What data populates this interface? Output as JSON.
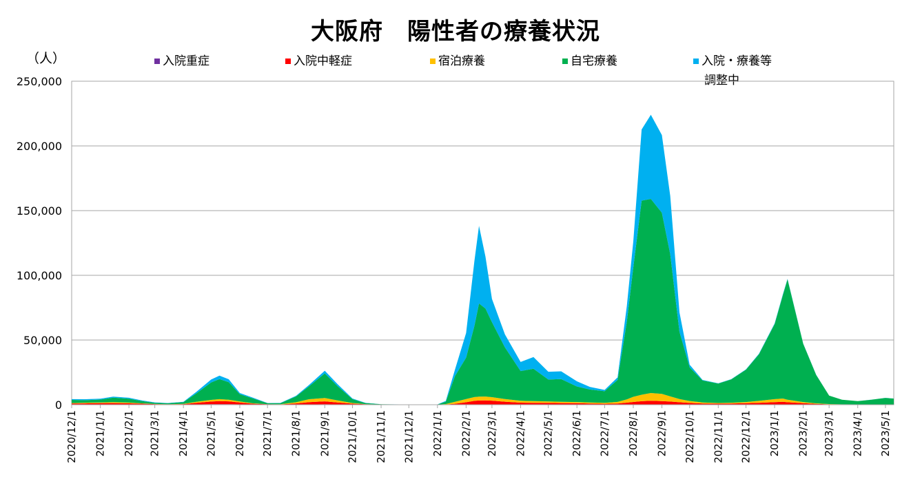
{
  "chart_data": {
    "type": "area",
    "stacked": true,
    "title": "大阪府　陽性者の療養状況",
    "y_unit": "（人）",
    "ylim": [
      0,
      250000
    ],
    "y_ticks": [
      0,
      50000,
      100000,
      150000,
      200000,
      250000
    ],
    "y_tick_labels": [
      "0",
      "50,000",
      "100,000",
      "150,000",
      "200,000",
      "250,000"
    ],
    "x_range": [
      "2020-12-01",
      "2023-05-10"
    ],
    "x_tick_labels": [
      "2020/12/1",
      "2021/1/1",
      "2021/2/1",
      "2021/3/1",
      "2021/4/1",
      "2021/5/1",
      "2021/6/1",
      "2021/7/1",
      "2021/8/1",
      "2021/9/1",
      "2021/10/1",
      "2021/11/1",
      "2021/12/1",
      "2022/1/1",
      "2022/2/1",
      "2022/3/1",
      "2022/4/1",
      "2022/5/1",
      "2022/6/1",
      "2022/7/1",
      "2022/8/1",
      "2022/9/1",
      "2022/10/1",
      "2022/11/1",
      "2022/12/1",
      "2023/1/1",
      "2023/2/1",
      "2023/3/1",
      "2023/4/1",
      "2023/5/1"
    ],
    "grid": true,
    "legend_position": "top",
    "legend_note": "調整中",
    "dates": [
      "2020-12-01",
      "2020-12-15",
      "2021-01-01",
      "2021-01-15",
      "2021-02-01",
      "2021-02-15",
      "2021-03-01",
      "2021-03-15",
      "2021-04-01",
      "2021-04-15",
      "2021-05-01",
      "2021-05-10",
      "2021-05-20",
      "2021-06-01",
      "2021-06-15",
      "2021-07-01",
      "2021-07-15",
      "2021-08-01",
      "2021-08-15",
      "2021-09-01",
      "2021-09-15",
      "2021-10-01",
      "2021-10-15",
      "2021-11-01",
      "2021-12-01",
      "2022-01-01",
      "2022-01-10",
      "2022-01-20",
      "2022-02-01",
      "2022-02-10",
      "2022-02-15",
      "2022-02-22",
      "2022-03-01",
      "2022-03-15",
      "2022-04-01",
      "2022-04-15",
      "2022-05-01",
      "2022-05-15",
      "2022-06-01",
      "2022-06-15",
      "2022-07-01",
      "2022-07-15",
      "2022-07-25",
      "2022-08-01",
      "2022-08-10",
      "2022-08-20",
      "2022-09-01",
      "2022-09-10",
      "2022-09-20",
      "2022-10-01",
      "2022-10-15",
      "2022-11-01",
      "2022-11-15",
      "2022-12-01",
      "2022-12-15",
      "2023-01-01",
      "2023-01-10",
      "2023-01-15",
      "2023-02-01",
      "2023-02-15",
      "2023-03-01",
      "2023-03-15",
      "2023-04-01",
      "2023-04-15",
      "2023-05-01",
      "2023-05-10"
    ],
    "series": [
      {
        "name": "入院重症",
        "color": "#7030a0",
        "values": [
          100,
          130,
          170,
          150,
          120,
          90,
          60,
          40,
          60,
          200,
          350,
          420,
          380,
          260,
          120,
          50,
          40,
          120,
          230,
          300,
          200,
          110,
          50,
          20,
          10,
          10,
          20,
          50,
          120,
          200,
          230,
          240,
          230,
          160,
          110,
          100,
          90,
          80,
          70,
          60,
          50,
          70,
          100,
          110,
          130,
          140,
          140,
          130,
          110,
          80,
          50,
          40,
          40,
          50,
          70,
          100,
          110,
          100,
          60,
          40,
          20,
          20,
          10,
          10,
          10,
          10
        ]
      },
      {
        "name": "入院中軽症",
        "color": "#ff0000",
        "values": [
          800,
          900,
          1000,
          1100,
          950,
          700,
          400,
          300,
          400,
          1300,
          2100,
          2400,
          2200,
          1500,
          700,
          300,
          250,
          900,
          1800,
          2300,
          1500,
          700,
          300,
          100,
          50,
          50,
          200,
          700,
          1800,
          2800,
          3000,
          3100,
          2900,
          2200,
          1500,
          1400,
          1300,
          1200,
          1100,
          900,
          700,
          900,
          1500,
          2000,
          2600,
          2900,
          2700,
          2300,
          1800,
          1300,
          900,
          800,
          900,
          1100,
          1400,
          1900,
          2100,
          1800,
          1100,
          600,
          300,
          200,
          150,
          150,
          150,
          150
        ]
      },
      {
        "name": "宿泊療養",
        "color": "#ffc000",
        "values": [
          400,
          500,
          600,
          700,
          600,
          300,
          150,
          100,
          200,
          800,
          1300,
          1500,
          1300,
          800,
          300,
          100,
          100,
          900,
          2200,
          2600,
          1600,
          500,
          150,
          30,
          10,
          10,
          300,
          1500,
          2500,
          2900,
          3000,
          3000,
          2700,
          2000,
          1400,
          1300,
          1100,
          1000,
          900,
          800,
          700,
          1200,
          2500,
          4000,
          5000,
          6000,
          5500,
          4000,
          2500,
          1500,
          800,
          500,
          600,
          900,
          1500,
          2300,
          2600,
          2000,
          900,
          400,
          200,
          100,
          100,
          100,
          100,
          100
        ]
      },
      {
        "name": "自宅療養",
        "color": "#00b050",
        "values": [
          2400,
          2000,
          2200,
          3500,
          3000,
          1800,
          900,
          700,
          1300,
          6500,
          13500,
          15500,
          13500,
          5500,
          3800,
          700,
          800,
          4500,
          10000,
          19000,
          11000,
          3000,
          800,
          200,
          100,
          150,
          1800,
          20000,
          32000,
          55000,
          72000,
          68000,
          58000,
          40000,
          23000,
          25000,
          17000,
          17500,
          12000,
          10000,
          9000,
          17000,
          60000,
          100000,
          150000,
          150000,
          140000,
          110000,
          52000,
          26000,
          17000,
          15000,
          18000,
          25000,
          36000,
          58000,
          80000,
          93000,
          45000,
          22000,
          6500,
          3500,
          2500,
          3500,
          5000,
          4500
        ]
      },
      {
        "name": "入院・療養等",
        "color": "#00b0f0",
        "values": [
          600,
          700,
          700,
          800,
          700,
          400,
          300,
          200,
          300,
          1200,
          2200,
          2700,
          2300,
          1000,
          600,
          200,
          200,
          500,
          1100,
          2100,
          1500,
          500,
          150,
          50,
          30,
          30,
          600,
          5000,
          19000,
          50000,
          60000,
          40000,
          18000,
          10000,
          7000,
          9000,
          6000,
          6000,
          4000,
          2000,
          1000,
          2000,
          12000,
          20000,
          55000,
          65000,
          60000,
          45000,
          15000,
          2000,
          400,
          200,
          200,
          300,
          400,
          500,
          600,
          400,
          200,
          100,
          50,
          50,
          50,
          50,
          50,
          50
        ]
      }
    ]
  }
}
